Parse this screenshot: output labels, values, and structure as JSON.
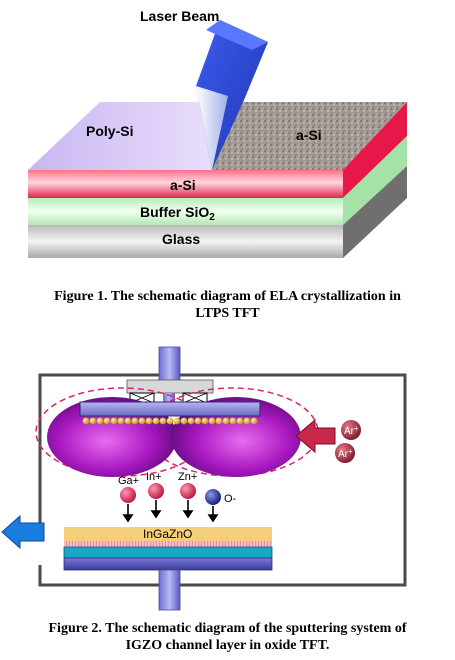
{
  "figure1": {
    "labels": {
      "laser_beam": "Laser Beam",
      "poly_si": "Poly-Si",
      "a_si_surface": "a-Si",
      "a_si_layer": "a-Si",
      "buffer": "Buffer SiO",
      "buffer_subscript": "2",
      "glass": "Glass"
    },
    "caption_line1": "Figure 1. The schematic diagram of ELA crystallization in",
    "caption_line2": "LTPS TFT"
  },
  "figure2": {
    "ions": {
      "ar_1": "Ar",
      "ar_1_sup": "+",
      "ar_2": "Ar",
      "ar_2_sup": "+",
      "ga": "Ga+",
      "in": "In+",
      "zn": "Zn+",
      "o": "O-"
    },
    "substrate_label": "InGaZnO",
    "caption_line1": "Figure 2. The schematic diagram of the sputtering system of",
    "caption_line2": "IGZO channel layer in oxide TFT."
  },
  "colors": {
    "poly_si": "#d9c8f5",
    "a_si_red": "#e8264f",
    "buffer_green": "#c9f0c9",
    "glass_gray": "#c8c8c8",
    "laser_blue": "#2f4fd8",
    "plasma_purple": "#b014c8",
    "target_blue": "#8a8ad8",
    "arrow_red": "#c8284a",
    "arrow_blue": "#1a7be0",
    "igzo_film": "#f5cf7a",
    "substrate_cyan": "#17a8c8"
  }
}
